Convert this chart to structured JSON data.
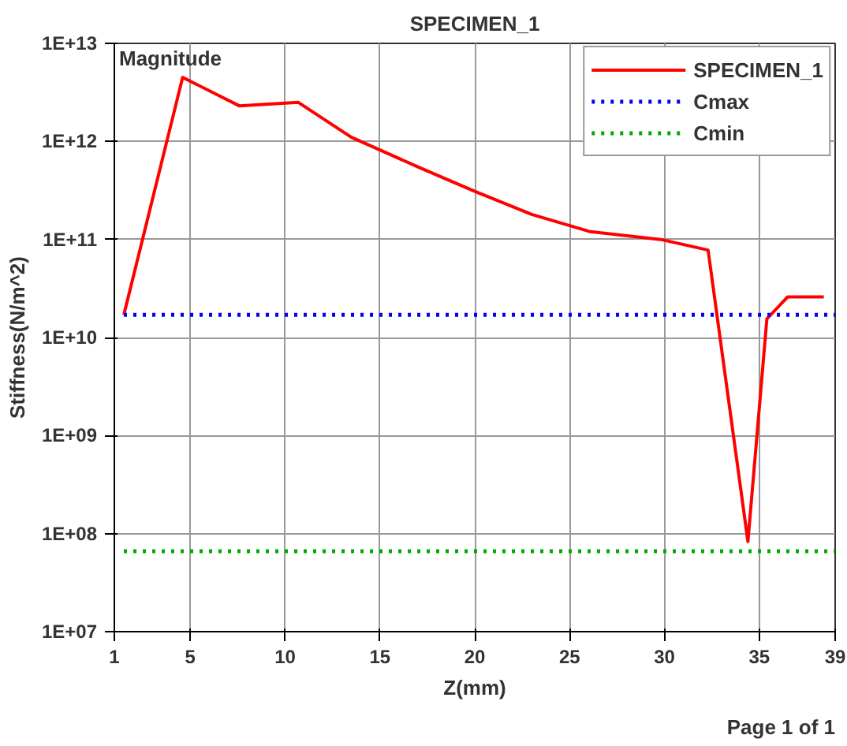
{
  "chart_data": {
    "type": "line",
    "title": "SPECIMEN_1",
    "xlabel": "Z(mm)",
    "ylabel": "Stiffness(N/m^2)",
    "annotations": [
      "Magnitude",
      "Page 1 of 1"
    ],
    "series": [
      {
        "name": "SPECIMEN_1",
        "color": "#ff0000",
        "line_style": "solid",
        "x": [
          1.5,
          4.6,
          7.6,
          10.7,
          13.5,
          17,
          20,
          23,
          26.1,
          29.8,
          32.3,
          34.4,
          35.4,
          36.5,
          38.4
        ],
        "values": [
          17000000000.0,
          4500000000000.0,
          2300000000000.0,
          2500000000000.0,
          1100000000000.0,
          550000000000.0,
          310000000000.0,
          180000000000.0,
          120000000000.0,
          100000000000.0,
          78000000000.0,
          83000000.0,
          15500000000.0,
          26000000000.0,
          26000000000.0
        ]
      },
      {
        "name": "Cmax",
        "color": "#0000ff",
        "line_style": "dotted",
        "x": [
          1.5,
          39
        ],
        "values": [
          17000000000.0,
          17000000000.0
        ]
      },
      {
        "name": "Cmin",
        "color": "#00aa00",
        "line_style": "dotted",
        "x": [
          1.5,
          39
        ],
        "values": [
          66000000.0,
          66000000.0
        ]
      }
    ],
    "xlim": [
      1,
      39
    ],
    "xticks": [
      1,
      5,
      10,
      15,
      20,
      25,
      30,
      35,
      39
    ],
    "ylim": [
      10000000.0,
      10000000000000.0
    ],
    "yticks": [
      {
        "value": 10000000.0,
        "label": "1E+07"
      },
      {
        "value": 100000000.0,
        "label": "1E+08"
      },
      {
        "value": 1000000000.0,
        "label": "1E+09"
      },
      {
        "value": 10000000000.0,
        "label": "1E+10"
      },
      {
        "value": 100000000000.0,
        "label": "1E+11"
      },
      {
        "value": 1000000000000.0,
        "label": "1E+12"
      },
      {
        "value": 10000000000000.0,
        "label": "1E+13"
      }
    ],
    "log": "y",
    "grid": true,
    "legend": "top right",
    "marker": "none"
  }
}
